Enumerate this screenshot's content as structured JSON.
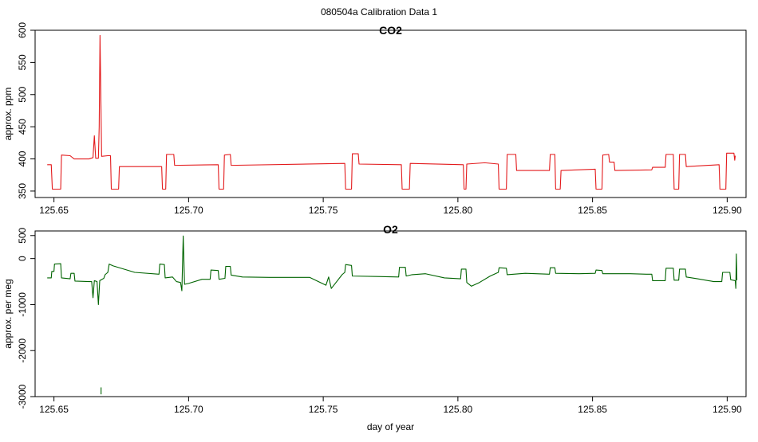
{
  "figure": {
    "title": "080504a   Calibration Data 1"
  },
  "colors": {
    "co2_line": "#e31a1c",
    "o2_line": "#006400",
    "frame": "#000000"
  },
  "chart_data": [
    {
      "type": "line",
      "title": "CO2",
      "xlabel": "",
      "ylabel": "approx. ppm",
      "xlim": [
        125.643,
        125.907
      ],
      "ylim": [
        340,
        600
      ],
      "x_ticks": [
        125.65,
        125.7,
        125.75,
        125.8,
        125.85,
        125.9
      ],
      "x_tick_labels": [
        "125.65",
        "125.70",
        "125.75",
        "125.80",
        "125.85",
        "125.90"
      ],
      "y_ticks": [
        350,
        400,
        450,
        500,
        550,
        600
      ],
      "y_tick_labels": [
        "350",
        "400",
        "450",
        "500",
        "550",
        "600"
      ],
      "series": [
        {
          "color": "#e31a1c",
          "points": [
            [
              125.6475,
              391
            ],
            [
              125.649,
              391
            ],
            [
              125.6494,
              353
            ],
            [
              125.6525,
              353
            ],
            [
              125.6528,
              406
            ],
            [
              125.656,
              405
            ],
            [
              125.6575,
              400
            ],
            [
              125.663,
              400
            ],
            [
              125.6645,
              402
            ],
            [
              125.665,
              436
            ],
            [
              125.6655,
              401
            ],
            [
              125.6665,
              401
            ],
            [
              125.6668,
              450
            ],
            [
              125.6671,
              592
            ],
            [
              125.6674,
              500
            ],
            [
              125.6677,
              404
            ],
            [
              125.67,
              405
            ],
            [
              125.671,
              405
            ],
            [
              125.6713,
              353
            ],
            [
              125.674,
              353
            ],
            [
              125.6743,
              388
            ],
            [
              125.69,
              388
            ],
            [
              125.6903,
              353
            ],
            [
              125.6915,
              353
            ],
            [
              125.6918,
              407
            ],
            [
              125.6945,
              407
            ],
            [
              125.6948,
              390
            ],
            [
              125.711,
              391
            ],
            [
              125.7113,
              353
            ],
            [
              125.713,
              353
            ],
            [
              125.7133,
              406
            ],
            [
              125.7155,
              407
            ],
            [
              125.7158,
              390
            ],
            [
              125.758,
              393
            ],
            [
              125.7583,
              353
            ],
            [
              125.7605,
              353
            ],
            [
              125.7608,
              408
            ],
            [
              125.763,
              408
            ],
            [
              125.7633,
              392
            ],
            [
              125.779,
              391
            ],
            [
              125.7793,
              353
            ],
            [
              125.782,
              353
            ],
            [
              125.7823,
              393
            ],
            [
              125.802,
              391
            ],
            [
              125.8023,
              353
            ],
            [
              125.803,
              353
            ],
            [
              125.8033,
              392
            ],
            [
              125.81,
              394
            ],
            [
              125.815,
              392
            ],
            [
              125.8153,
              353
            ],
            [
              125.818,
              353
            ],
            [
              125.8183,
              407
            ],
            [
              125.8215,
              407
            ],
            [
              125.8218,
              382
            ],
            [
              125.834,
              382
            ],
            [
              125.8343,
              407
            ],
            [
              125.836,
              407
            ],
            [
              125.8363,
              353
            ],
            [
              125.838,
              353
            ],
            [
              125.8383,
              382
            ],
            [
              125.851,
              384
            ],
            [
              125.8513,
              353
            ],
            [
              125.8535,
              353
            ],
            [
              125.8538,
              406
            ],
            [
              125.856,
              407
            ],
            [
              125.8563,
              395
            ],
            [
              125.858,
              395
            ],
            [
              125.8583,
              382
            ],
            [
              125.872,
              383
            ],
            [
              125.8723,
              387
            ],
            [
              125.877,
              387
            ],
            [
              125.8773,
              407
            ],
            [
              125.88,
              407
            ],
            [
              125.8803,
              353
            ],
            [
              125.882,
              353
            ],
            [
              125.8823,
              407
            ],
            [
              125.8845,
              407
            ],
            [
              125.8848,
              388
            ],
            [
              125.897,
              391
            ],
            [
              125.8973,
              353
            ],
            [
              125.8995,
              353
            ],
            [
              125.8998,
              409
            ],
            [
              125.9025,
              409
            ],
            [
              125.9028,
              398
            ],
            [
              125.903,
              405
            ]
          ]
        }
      ]
    },
    {
      "type": "line",
      "title": "O2",
      "xlabel": "day of year",
      "ylabel": "approx. per meg",
      "xlim": [
        125.643,
        125.907
      ],
      "ylim": [
        -3000,
        600
      ],
      "x_ticks": [
        125.65,
        125.7,
        125.75,
        125.8,
        125.85,
        125.9
      ],
      "x_tick_labels": [
        "125.65",
        "125.70",
        "125.75",
        "125.80",
        "125.85",
        "125.90"
      ],
      "y_ticks": [
        -3000,
        -2000,
        -1000,
        0,
        500
      ],
      "y_tick_labels": [
        "-3000",
        "-2000",
        "-1000",
        "0",
        "500"
      ],
      "series": [
        {
          "color": "#006400",
          "points": [
            [
              125.6475,
              -420
            ],
            [
              125.649,
              -420
            ],
            [
              125.6492,
              -280
            ],
            [
              125.65,
              -280
            ],
            [
              125.6502,
              -120
            ],
            [
              125.6525,
              -110
            ],
            [
              125.6528,
              -420
            ],
            [
              125.656,
              -440
            ],
            [
              125.6563,
              -320
            ],
            [
              125.6575,
              -320
            ],
            [
              125.6578,
              -490
            ],
            [
              125.663,
              -500
            ],
            [
              125.664,
              -500
            ],
            [
              125.6645,
              -850
            ],
            [
              125.665,
              -480
            ],
            [
              125.666,
              -500
            ],
            [
              125.6665,
              -1000
            ],
            [
              125.667,
              -480
            ],
            [
              125.6685,
              -430
            ],
            [
              125.669,
              -350
            ],
            [
              125.67,
              -300
            ],
            [
              125.6705,
              -120
            ],
            [
              125.672,
              -160
            ],
            [
              125.68,
              -300
            ],
            [
              125.689,
              -340
            ],
            [
              125.6893,
              -120
            ],
            [
              125.691,
              -130
            ],
            [
              125.6913,
              -420
            ],
            [
              125.694,
              -400
            ],
            [
              125.6955,
              -500
            ],
            [
              125.697,
              -520
            ],
            [
              125.6975,
              -700
            ],
            [
              125.698,
              490
            ],
            [
              125.6985,
              -560
            ],
            [
              125.7,
              -540
            ],
            [
              125.705,
              -450
            ],
            [
              125.708,
              -450
            ],
            [
              125.7083,
              -250
            ],
            [
              125.711,
              -260
            ],
            [
              125.7113,
              -450
            ],
            [
              125.7135,
              -430
            ],
            [
              125.7138,
              -170
            ],
            [
              125.7155,
              -170
            ],
            [
              125.7158,
              -360
            ],
            [
              125.72,
              -400
            ],
            [
              125.73,
              -410
            ],
            [
              125.745,
              -410
            ],
            [
              125.751,
              -580
            ],
            [
              125.752,
              -400
            ],
            [
              125.753,
              -650
            ],
            [
              125.755,
              -500
            ],
            [
              125.757,
              -350
            ],
            [
              125.758,
              -300
            ],
            [
              125.7583,
              -130
            ],
            [
              125.7605,
              -150
            ],
            [
              125.7608,
              -380
            ],
            [
              125.77,
              -390
            ],
            [
              125.778,
              -400
            ],
            [
              125.7783,
              -190
            ],
            [
              125.7805,
              -190
            ],
            [
              125.7808,
              -380
            ],
            [
              125.783,
              -350
            ],
            [
              125.788,
              -330
            ],
            [
              125.795,
              -420
            ],
            [
              125.801,
              -440
            ],
            [
              125.8013,
              -230
            ],
            [
              125.803,
              -230
            ],
            [
              125.8033,
              -520
            ],
            [
              125.805,
              -600
            ],
            [
              125.808,
              -520
            ],
            [
              125.812,
              -380
            ],
            [
              125.815,
              -300
            ],
            [
              125.8153,
              -200
            ],
            [
              125.818,
              -210
            ],
            [
              125.8183,
              -350
            ],
            [
              125.825,
              -320
            ],
            [
              125.834,
              -340
            ],
            [
              125.8343,
              -200
            ],
            [
              125.836,
              -200
            ],
            [
              125.8363,
              -320
            ],
            [
              125.845,
              -330
            ],
            [
              125.851,
              -320
            ],
            [
              125.8513,
              -250
            ],
            [
              125.8535,
              -260
            ],
            [
              125.8538,
              -330
            ],
            [
              125.864,
              -330
            ],
            [
              125.87,
              -340
            ],
            [
              125.872,
              -340
            ],
            [
              125.8723,
              -480
            ],
            [
              125.877,
              -480
            ],
            [
              125.8773,
              -210
            ],
            [
              125.88,
              -210
            ],
            [
              125.8803,
              -470
            ],
            [
              125.882,
              -470
            ],
            [
              125.8823,
              -230
            ],
            [
              125.8845,
              -230
            ],
            [
              125.8848,
              -400
            ],
            [
              125.889,
              -440
            ],
            [
              125.895,
              -500
            ],
            [
              125.898,
              -500
            ],
            [
              125.8983,
              -300
            ],
            [
              125.901,
              -300
            ],
            [
              125.9013,
              -460
            ],
            [
              125.903,
              -480
            ],
            [
              125.9032,
              -650
            ],
            [
              125.9034,
              100
            ],
            [
              125.9036,
              -470
            ]
          ]
        },
        {
          "color": "#006400",
          "points": [
            [
              125.6675,
              -2800
            ],
            [
              125.6675,
              -2950
            ]
          ]
        }
      ]
    }
  ]
}
